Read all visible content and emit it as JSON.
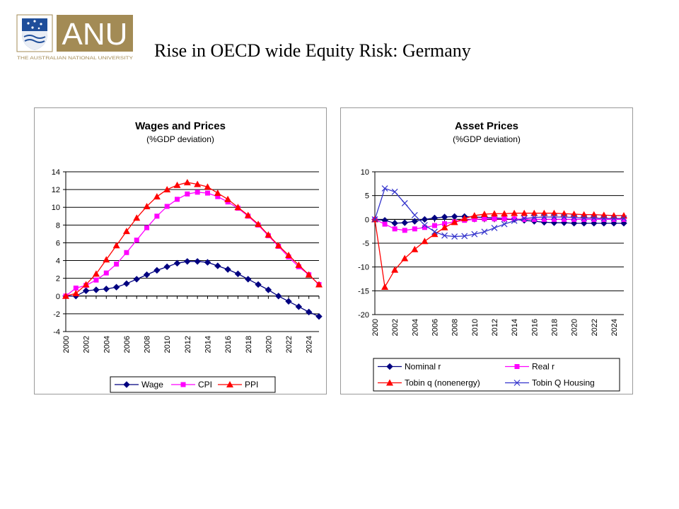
{
  "header": {
    "logo_text": "ANU",
    "logo_subtext": "THE AUSTRALIAN NATIONAL UNIVERSITY",
    "title": "Rise in OECD wide Equity Risk: Germany"
  },
  "colors": {
    "logo_gold": "#A38B55",
    "logo_blue": "#1F4E9A",
    "navy": "#000080",
    "magenta": "#FF00FF",
    "red": "#FF0000",
    "slateblue": "#3333CC"
  },
  "chart_data": [
    {
      "type": "line",
      "title": "Wages and Prices",
      "subtitle": "(%GDP deviation)",
      "xlabel": "",
      "ylabel": "",
      "x": [
        2000,
        2001,
        2002,
        2003,
        2004,
        2005,
        2006,
        2007,
        2008,
        2009,
        2010,
        2011,
        2012,
        2013,
        2014,
        2015,
        2016,
        2017,
        2018,
        2019,
        2020,
        2021,
        2022,
        2023,
        2024,
        2025
      ],
      "xticks": [
        "2000",
        "2002",
        "2004",
        "2006",
        "2008",
        "2010",
        "2012",
        "2014",
        "2016",
        "2018",
        "2020",
        "2022",
        "2024"
      ],
      "ylim": [
        -4,
        14
      ],
      "yticks": [
        "-4",
        "-2",
        "0",
        "2",
        "4",
        "6",
        "8",
        "10",
        "12",
        "14"
      ],
      "grid": true,
      "legend": "bottom",
      "series": [
        {
          "name": "Wage",
          "color": "#000080",
          "marker": "diamond",
          "values": [
            0,
            0,
            0.6,
            0.7,
            0.8,
            1.0,
            1.4,
            1.9,
            2.4,
            2.9,
            3.3,
            3.7,
            3.9,
            3.9,
            3.8,
            3.4,
            3.0,
            2.5,
            1.9,
            1.3,
            0.7,
            0,
            -0.6,
            -1.2,
            -1.8,
            -2.3
          ]
        },
        {
          "name": "CPI",
          "color": "#FF00FF",
          "marker": "square",
          "values": [
            0,
            0.9,
            1.2,
            1.8,
            2.6,
            3.6,
            4.9,
            6.3,
            7.7,
            9.0,
            10.1,
            10.9,
            11.5,
            11.7,
            11.6,
            11.2,
            10.6,
            9.9,
            9.0,
            8.0,
            6.8,
            5.6,
            4.4,
            3.3,
            2.4,
            1.3
          ]
        },
        {
          "name": "PPI",
          "color": "#FF0000",
          "marker": "triangle",
          "values": [
            0,
            0.3,
            1.3,
            2.5,
            4.1,
            5.7,
            7.3,
            8.8,
            10.1,
            11.2,
            12.0,
            12.5,
            12.8,
            12.6,
            12.3,
            11.6,
            10.9,
            10.0,
            9.1,
            8.1,
            6.9,
            5.7,
            4.6,
            3.5,
            2.4,
            1.3
          ]
        }
      ]
    },
    {
      "type": "line",
      "title": "Asset Prices",
      "subtitle": "(%GDP deviation)",
      "xlabel": "",
      "ylabel": "",
      "x": [
        2000,
        2001,
        2002,
        2003,
        2004,
        2005,
        2006,
        2007,
        2008,
        2009,
        2010,
        2011,
        2012,
        2013,
        2014,
        2015,
        2016,
        2017,
        2018,
        2019,
        2020,
        2021,
        2022,
        2023,
        2024,
        2025
      ],
      "xticks": [
        "2000",
        "2002",
        "2004",
        "2006",
        "2008",
        "2010",
        "2012",
        "2014",
        "2016",
        "2018",
        "2020",
        "2022",
        "2024"
      ],
      "ylim": [
        -20,
        10
      ],
      "yticks": [
        "-20",
        "-15",
        "-10",
        "-5",
        "0",
        "5",
        "10"
      ],
      "grid": true,
      "legend": "bottom",
      "series": [
        {
          "name": "Nominal r",
          "color": "#000080",
          "marker": "diamond",
          "values": [
            0,
            -0.2,
            -0.8,
            -0.7,
            -0.4,
            0,
            0.3,
            0.5,
            0.6,
            0.6,
            0.5,
            0.4,
            0.3,
            0.2,
            0,
            -0.2,
            -0.4,
            -0.6,
            -0.7,
            -0.7,
            -0.8,
            -0.8,
            -0.8,
            -0.8,
            -0.8,
            -0.8
          ]
        },
        {
          "name": "Real r",
          "color": "#FF00FF",
          "marker": "square",
          "values": [
            0,
            -1.0,
            -2.0,
            -2.3,
            -2.0,
            -1.7,
            -1.3,
            -0.9,
            -0.5,
            -0.2,
            0,
            0.1,
            0.1,
            0.1,
            0.1,
            0,
            0,
            0,
            0,
            0,
            0,
            0,
            0,
            0,
            0,
            0
          ]
        },
        {
          "name": "Tobin q (nonenergy)",
          "color": "#FF0000",
          "marker": "triangle",
          "values": [
            0,
            -14.2,
            -10.6,
            -8.2,
            -6.3,
            -4.6,
            -3.1,
            -1.7,
            -0.6,
            0.2,
            0.8,
            1.1,
            1.2,
            1.2,
            1.3,
            1.3,
            1.3,
            1.3,
            1.3,
            1.2,
            1.1,
            1.0,
            1.0,
            0.9,
            0.8,
            0.8
          ]
        },
        {
          "name": "Tobin Q Housing",
          "color": "#3333CC",
          "marker": "x",
          "values": [
            0,
            6.5,
            5.8,
            3.4,
            0.9,
            -1.2,
            -2.6,
            -3.4,
            -3.6,
            -3.5,
            -3.1,
            -2.6,
            -1.8,
            -1.0,
            -0.3,
            0.2,
            0.4,
            0.5,
            0.5,
            0.5,
            0.4,
            0.3,
            0.3,
            0.2,
            0.2,
            0.2
          ]
        }
      ]
    }
  ]
}
